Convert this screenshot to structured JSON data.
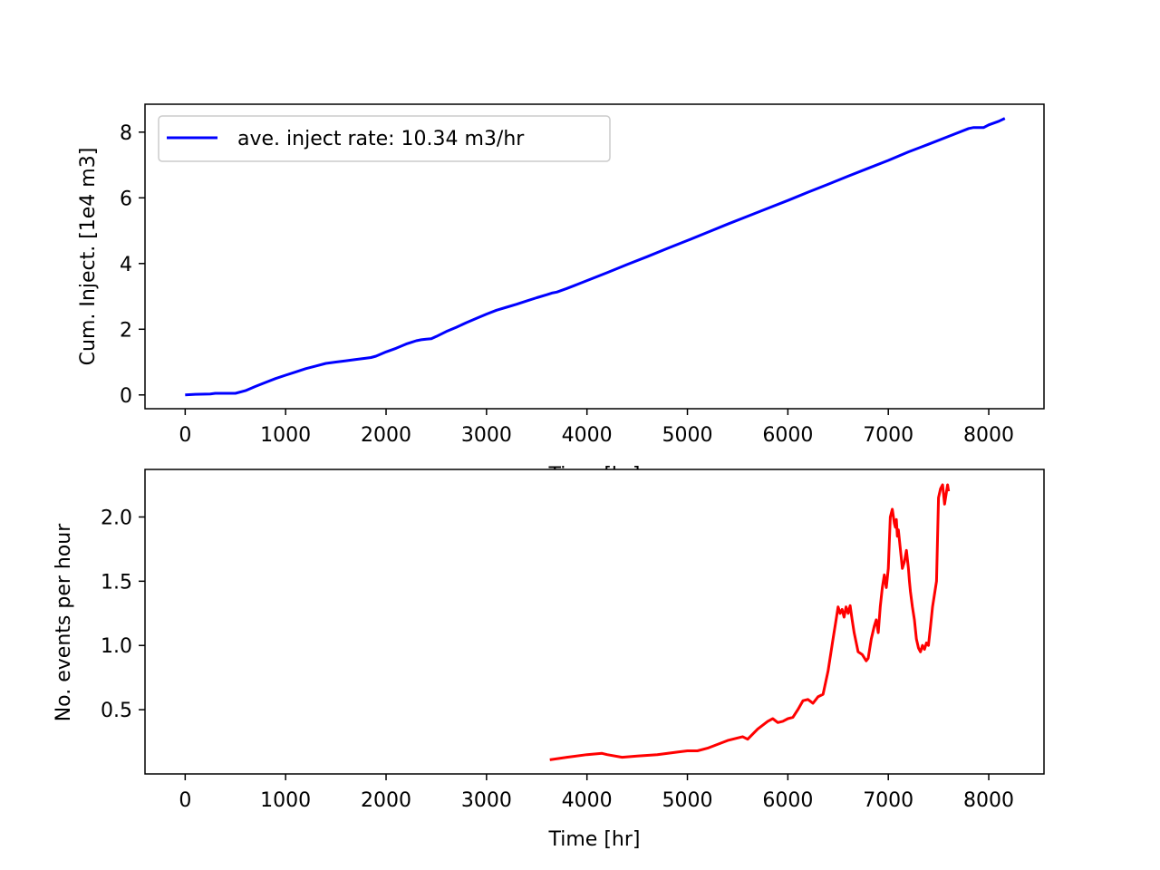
{
  "colors": {
    "top_series": "#0000ff",
    "bottom_series": "#ff0000",
    "axes": "#000000",
    "background": "#ffffff"
  },
  "chart_data": [
    {
      "type": "line",
      "title": "",
      "xlabel": "Time [hr]",
      "ylabel": "Cum. Inject. [1e4 m3]",
      "xlim": [
        -400,
        8550
      ],
      "ylim": [
        -0.42,
        8.85
      ],
      "xticks": [
        0,
        1000,
        2000,
        3000,
        4000,
        5000,
        6000,
        7000,
        8000
      ],
      "xtick_labels": [
        "0",
        "1000",
        "2000",
        "3000",
        "4000",
        "5000",
        "6000",
        "7000",
        "8000"
      ],
      "yticks": [
        0,
        2,
        4,
        6,
        8
      ],
      "ytick_labels": [
        "0",
        "2",
        "4",
        "6",
        "8"
      ],
      "grid": false,
      "legend": {
        "placement": "upper-left",
        "entries": [
          "ave. inject rate: 10.34 m3/hr"
        ]
      },
      "series": [
        {
          "name": "ave. inject rate: 10.34 m3/hr",
          "color": "#0000ff",
          "x": [
            0,
            100,
            250,
            300,
            500,
            600,
            700,
            800,
            900,
            1000,
            1100,
            1200,
            1300,
            1400,
            1500,
            1600,
            1700,
            1800,
            1850,
            1900,
            2000,
            2100,
            2200,
            2250,
            2300,
            2350,
            2400,
            2450,
            2500,
            2600,
            2700,
            2800,
            2900,
            3000,
            3100,
            3200,
            3300,
            3400,
            3500,
            3600,
            3650,
            3700,
            3800,
            3900,
            4000,
            4200,
            4400,
            4600,
            4800,
            5000,
            5200,
            5400,
            5600,
            5800,
            6000,
            6200,
            6400,
            6600,
            6800,
            7000,
            7200,
            7400,
            7600,
            7800,
            7850,
            7950,
            8000,
            8100,
            8160
          ],
          "y": [
            0,
            0.02,
            0.03,
            0.05,
            0.05,
            0.13,
            0.26,
            0.38,
            0.5,
            0.6,
            0.7,
            0.8,
            0.88,
            0.96,
            1.0,
            1.04,
            1.08,
            1.12,
            1.14,
            1.18,
            1.31,
            1.42,
            1.55,
            1.6,
            1.65,
            1.68,
            1.7,
            1.71,
            1.78,
            1.93,
            2.06,
            2.2,
            2.33,
            2.46,
            2.58,
            2.67,
            2.76,
            2.86,
            2.96,
            3.05,
            3.1,
            3.13,
            3.24,
            3.36,
            3.48,
            3.72,
            3.97,
            4.21,
            4.46,
            4.7,
            4.95,
            5.2,
            5.44,
            5.68,
            5.92,
            6.17,
            6.41,
            6.66,
            6.9,
            7.14,
            7.4,
            7.63,
            7.87,
            8.11,
            8.14,
            8.14,
            8.22,
            8.33,
            8.42
          ]
        }
      ]
    },
    {
      "type": "line",
      "title": "",
      "xlabel": "Time [hr]",
      "ylabel": "No. events per hour",
      "xlim": [
        -400,
        8550
      ],
      "ylim": [
        0.0,
        2.37
      ],
      "xticks": [
        0,
        1000,
        2000,
        3000,
        4000,
        5000,
        6000,
        7000,
        8000
      ],
      "xtick_labels": [
        "0",
        "1000",
        "2000",
        "3000",
        "4000",
        "5000",
        "6000",
        "7000",
        "8000"
      ],
      "yticks": [
        0.5,
        1.0,
        1.5,
        2.0
      ],
      "ytick_labels": [
        "0.5",
        "1.0",
        "1.5",
        "2.0"
      ],
      "grid": false,
      "series": [
        {
          "color": "#ff0000",
          "x": [
            3630,
            3800,
            4000,
            4150,
            4200,
            4350,
            4500,
            4700,
            4900,
            5000,
            5100,
            5200,
            5300,
            5400,
            5500,
            5550,
            5600,
            5700,
            5800,
            5850,
            5900,
            5950,
            6000,
            6050,
            6100,
            6150,
            6200,
            6250,
            6300,
            6350,
            6400,
            6450,
            6480,
            6500,
            6520,
            6540,
            6560,
            6580,
            6600,
            6620,
            6640,
            6660,
            6700,
            6740,
            6780,
            6800,
            6830,
            6860,
            6880,
            6900,
            6920,
            6940,
            6960,
            6980,
            7000,
            7020,
            7040,
            7060,
            7070,
            7080,
            7090,
            7100,
            7120,
            7140,
            7160,
            7180,
            7200,
            7210,
            7220,
            7240,
            7260,
            7280,
            7300,
            7320,
            7340,
            7360,
            7380,
            7400,
            7420,
            7440,
            7460,
            7480,
            7500,
            7520,
            7540,
            7560,
            7570,
            7580,
            7590,
            7600
          ],
          "y": [
            0.11,
            0.13,
            0.15,
            0.16,
            0.15,
            0.13,
            0.14,
            0.15,
            0.17,
            0.18,
            0.18,
            0.2,
            0.23,
            0.26,
            0.28,
            0.29,
            0.27,
            0.35,
            0.41,
            0.43,
            0.4,
            0.41,
            0.43,
            0.44,
            0.5,
            0.57,
            0.58,
            0.55,
            0.6,
            0.62,
            0.8,
            1.05,
            1.2,
            1.3,
            1.25,
            1.28,
            1.22,
            1.3,
            1.25,
            1.31,
            1.2,
            1.1,
            0.95,
            0.93,
            0.88,
            0.9,
            1.05,
            1.15,
            1.2,
            1.1,
            1.3,
            1.45,
            1.55,
            1.45,
            1.6,
            2.0,
            2.06,
            1.95,
            1.92,
            1.98,
            1.85,
            1.9,
            1.75,
            1.6,
            1.65,
            1.74,
            1.6,
            1.5,
            1.42,
            1.3,
            1.2,
            1.05,
            0.98,
            0.95,
            1.0,
            0.97,
            1.02,
            1.0,
            1.15,
            1.3,
            1.4,
            1.5,
            2.15,
            2.22,
            2.25,
            2.1,
            2.15,
            2.2,
            2.25,
            2.2
          ]
        }
      ]
    }
  ]
}
